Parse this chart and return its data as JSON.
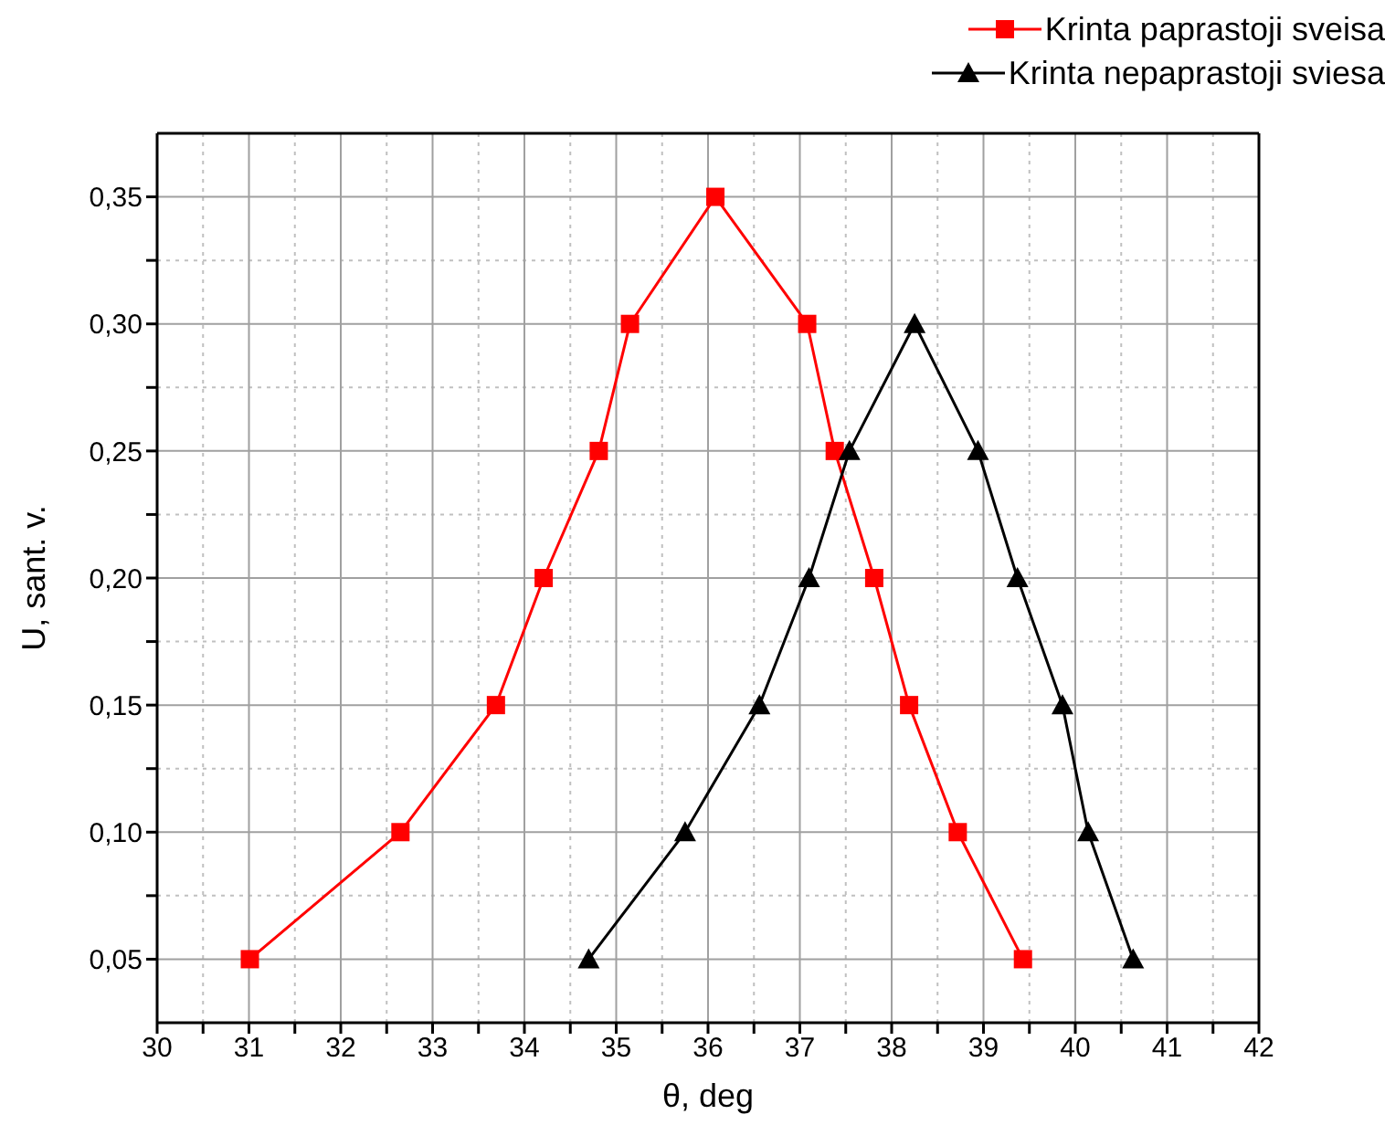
{
  "chart_data": {
    "type": "line",
    "xlabel": "θ, deg",
    "ylabel": "U, sant. v.",
    "series": [
      {
        "name": "Krinta paprastoji sveisa",
        "color": "#ff0000",
        "marker": "square",
        "x": [
          31.01,
          32.65,
          33.69,
          34.21,
          34.81,
          35.15,
          36.08,
          37.08,
          37.38,
          37.81,
          38.19,
          38.72,
          39.43
        ],
        "values": [
          0.05,
          0.1,
          0.15,
          0.2,
          0.25,
          0.3,
          0.35,
          0.3,
          0.25,
          0.2,
          0.15,
          0.1,
          0.05
        ]
      },
      {
        "name": "Krinta nepaprastoji sviesa",
        "color": "#000000",
        "marker": "triangle",
        "x": [
          34.7,
          35.75,
          36.56,
          37.1,
          37.54,
          38.25,
          38.94,
          39.37,
          39.86,
          40.14,
          40.63
        ],
        "values": [
          0.05,
          0.1,
          0.15,
          0.2,
          0.25,
          0.3,
          0.25,
          0.2,
          0.15,
          0.1,
          0.05
        ]
      }
    ],
    "xlim": [
      30,
      42
    ],
    "xticks": [
      30,
      {
        "value": 30.5,
        "label": null
      },
      31,
      {
        "value": 31.5,
        "label": null
      },
      32,
      {
        "value": 32.5,
        "label": null
      },
      33,
      {
        "value": 33.5,
        "label": null
      },
      34,
      {
        "value": 34.5,
        "label": null
      },
      35,
      {
        "value": 35.5,
        "label": null
      },
      36,
      {
        "value": 36.5,
        "label": null
      },
      37,
      {
        "value": 37.5,
        "label": null
      },
      38,
      {
        "value": 38.5,
        "label": null
      },
      39,
      {
        "value": 39.5,
        "label": null
      },
      40,
      {
        "value": 40.5,
        "label": null
      },
      41,
      {
        "value": 41.5,
        "label": null
      },
      42
    ],
    "ylim": [
      0.025,
      0.375
    ],
    "yticks": [
      {
        "value": 0.05,
        "label": "0,05"
      },
      {
        "value": 0.075,
        "label": null
      },
      {
        "value": 0.1,
        "label": "0,10"
      },
      {
        "value": 0.125,
        "label": null
      },
      {
        "value": 0.15,
        "label": "0,15"
      },
      {
        "value": 0.175,
        "label": null
      },
      {
        "value": 0.2,
        "label": "0,20"
      },
      {
        "value": 0.225,
        "label": null
      },
      {
        "value": 0.25,
        "label": "0,25"
      },
      {
        "value": 0.275,
        "label": null
      },
      {
        "value": 0.3,
        "label": "0,30"
      },
      {
        "value": 0.325,
        "label": null
      },
      {
        "value": 0.35,
        "label": "0,35"
      }
    ],
    "grid": true,
    "legend": "top right",
    "line_style": "solid"
  }
}
